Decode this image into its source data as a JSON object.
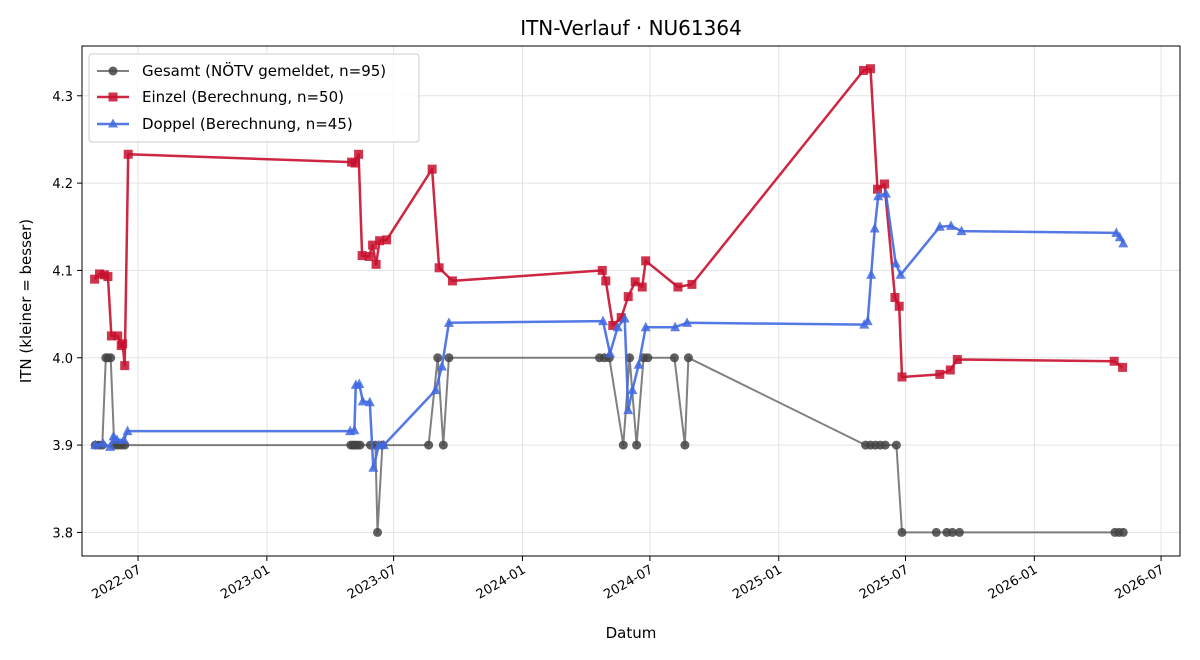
{
  "chart_data": {
    "type": "line",
    "title": "ITN-Verlauf · NU61364",
    "xlabel": "Datum",
    "ylabel": "ITN  (kleiner = besser)",
    "x_ticks": [
      "2022-07",
      "2023-01",
      "2023-07",
      "2024-01",
      "2024-07",
      "2025-01",
      "2025-07",
      "2026-01",
      "2026-07"
    ],
    "y_ticks": [
      "3.8",
      "3.9",
      "4.0",
      "4.1",
      "4.2",
      "4.3"
    ],
    "xlim": [
      "2022-04-12",
      "2026-07-28"
    ],
    "ylim": [
      3.773,
      4.357
    ],
    "grid": true,
    "legend_position": "top-left",
    "series": [
      {
        "name": "Gesamt (NÖTV gemeldet, n=95)",
        "color": "#555555",
        "marker": "circle",
        "points": [
          [
            "2022-05-01",
            3.9
          ],
          [
            "2022-05-06",
            3.9
          ],
          [
            "2022-05-11",
            3.9
          ],
          [
            "2022-05-16",
            4.0
          ],
          [
            "2022-05-19",
            4.0
          ],
          [
            "2022-05-23",
            4.0
          ],
          [
            "2022-05-28",
            3.9
          ],
          [
            "2022-06-02",
            3.9
          ],
          [
            "2022-06-07",
            3.9
          ],
          [
            "2022-06-12",
            3.9
          ],
          [
            "2023-05-01",
            3.9
          ],
          [
            "2023-05-04",
            3.9
          ],
          [
            "2023-05-07",
            3.9
          ],
          [
            "2023-05-10",
            3.9
          ],
          [
            "2023-05-14",
            3.9
          ],
          [
            "2023-05-29",
            3.9
          ],
          [
            "2023-06-05",
            3.9
          ],
          [
            "2023-06-08",
            3.8
          ],
          [
            "2023-06-15",
            3.9
          ],
          [
            "2023-08-20",
            3.9
          ],
          [
            "2023-09-02",
            4.0
          ],
          [
            "2023-09-10",
            3.9
          ],
          [
            "2023-09-18",
            4.0
          ],
          [
            "2024-04-20",
            4.0
          ],
          [
            "2024-04-27",
            4.0
          ],
          [
            "2024-05-04",
            4.0
          ],
          [
            "2024-05-24",
            3.9
          ],
          [
            "2024-06-02",
            4.0
          ],
          [
            "2024-06-12",
            3.9
          ],
          [
            "2024-06-22",
            4.0
          ],
          [
            "2024-06-28",
            4.0
          ],
          [
            "2024-08-05",
            4.0
          ],
          [
            "2024-08-20",
            3.9
          ],
          [
            "2024-08-25",
            4.0
          ],
          [
            "2025-05-05",
            3.9
          ],
          [
            "2025-05-12",
            3.9
          ],
          [
            "2025-05-19",
            3.9
          ],
          [
            "2025-05-26",
            3.9
          ],
          [
            "2025-06-02",
            3.9
          ],
          [
            "2025-06-18",
            3.9
          ],
          [
            "2025-06-26",
            3.8
          ],
          [
            "2025-08-14",
            3.8
          ],
          [
            "2025-08-29",
            3.8
          ],
          [
            "2025-09-06",
            3.8
          ],
          [
            "2025-09-16",
            3.8
          ],
          [
            "2026-04-26",
            3.8
          ],
          [
            "2026-05-02",
            3.8
          ],
          [
            "2026-05-08",
            3.8
          ]
        ]
      },
      {
        "name": "Einzel (Berechnung, n=50)",
        "color": "#c8102e",
        "marker": "square",
        "points": [
          [
            "2022-04-30",
            4.09
          ],
          [
            "2022-05-07",
            4.096
          ],
          [
            "2022-05-14",
            4.095
          ],
          [
            "2022-05-19",
            4.093
          ],
          [
            "2022-05-24",
            4.025
          ],
          [
            "2022-06-02",
            4.025
          ],
          [
            "2022-06-07",
            4.014
          ],
          [
            "2022-06-09",
            4.016
          ],
          [
            "2022-06-12",
            3.991
          ],
          [
            "2022-06-17",
            4.233
          ],
          [
            "2023-05-02",
            4.224
          ],
          [
            "2023-05-07",
            4.223
          ],
          [
            "2023-05-12",
            4.233
          ],
          [
            "2023-05-17",
            4.117
          ],
          [
            "2023-05-27",
            4.116
          ],
          [
            "2023-06-01",
            4.129
          ],
          [
            "2023-06-06",
            4.107
          ],
          [
            "2023-06-11",
            4.134
          ],
          [
            "2023-06-21",
            4.135
          ],
          [
            "2023-08-25",
            4.216
          ],
          [
            "2023-09-04",
            4.103
          ],
          [
            "2023-09-23",
            4.088
          ],
          [
            "2024-04-24",
            4.1
          ],
          [
            "2024-04-29",
            4.088
          ],
          [
            "2024-05-09",
            4.037
          ],
          [
            "2024-05-21",
            4.046
          ],
          [
            "2024-05-31",
            4.07
          ],
          [
            "2024-06-10",
            4.087
          ],
          [
            "2024-06-20",
            4.081
          ],
          [
            "2024-06-25",
            4.111
          ],
          [
            "2024-08-10",
            4.081
          ],
          [
            "2024-08-30",
            4.084
          ],
          [
            "2025-05-02",
            4.329
          ],
          [
            "2025-05-12",
            4.331
          ],
          [
            "2025-05-22",
            4.193
          ],
          [
            "2025-06-01",
            4.199
          ],
          [
            "2025-06-16",
            4.069
          ],
          [
            "2025-06-22",
            4.059
          ],
          [
            "2025-06-26",
            3.978
          ],
          [
            "2025-08-19",
            3.981
          ],
          [
            "2025-09-03",
            3.986
          ],
          [
            "2025-09-13",
            3.998
          ],
          [
            "2026-04-25",
            3.996
          ],
          [
            "2026-05-07",
            3.989
          ]
        ]
      },
      {
        "name": "Doppel (Berechnung, n=45)",
        "color": "#4169e1",
        "marker": "triangle",
        "points": [
          [
            "2022-05-01",
            3.9
          ],
          [
            "2022-05-12",
            3.902
          ],
          [
            "2022-05-22",
            3.898
          ],
          [
            "2022-05-27",
            3.91
          ],
          [
            "2022-06-01",
            3.906
          ],
          [
            "2022-06-11",
            3.906
          ],
          [
            "2022-06-16",
            3.916
          ],
          [
            "2023-04-30",
            3.916
          ],
          [
            "2023-05-06",
            3.917
          ],
          [
            "2023-05-08",
            3.969
          ],
          [
            "2023-05-13",
            3.97
          ],
          [
            "2023-05-18",
            3.95
          ],
          [
            "2023-05-28",
            3.949
          ],
          [
            "2023-06-02",
            3.874
          ],
          [
            "2023-06-10",
            3.9
          ],
          [
            "2023-06-17",
            3.9
          ],
          [
            "2023-08-30",
            3.963
          ],
          [
            "2023-09-08",
            3.99
          ],
          [
            "2023-09-18",
            4.04
          ],
          [
            "2024-04-25",
            4.042
          ],
          [
            "2024-05-05",
            4.005
          ],
          [
            "2024-05-16",
            4.035
          ],
          [
            "2024-05-26",
            4.045
          ],
          [
            "2024-05-31",
            3.94
          ],
          [
            "2024-06-06",
            3.963
          ],
          [
            "2024-06-15",
            3.992
          ],
          [
            "2024-06-25",
            4.035
          ],
          [
            "2024-08-06",
            4.035
          ],
          [
            "2024-08-23",
            4.04
          ],
          [
            "2025-05-03",
            4.038
          ],
          [
            "2025-05-08",
            4.042
          ],
          [
            "2025-05-13",
            4.095
          ],
          [
            "2025-05-18",
            4.148
          ],
          [
            "2025-05-23",
            4.185
          ],
          [
            "2025-06-03",
            4.188
          ],
          [
            "2025-06-17",
            4.108
          ],
          [
            "2025-06-24",
            4.095
          ],
          [
            "2025-08-19",
            4.15
          ],
          [
            "2025-09-04",
            4.151
          ],
          [
            "2025-09-19",
            4.145
          ],
          [
            "2026-04-28",
            4.143
          ],
          [
            "2026-05-03",
            4.138
          ],
          [
            "2026-05-08",
            4.131
          ]
        ]
      }
    ]
  }
}
